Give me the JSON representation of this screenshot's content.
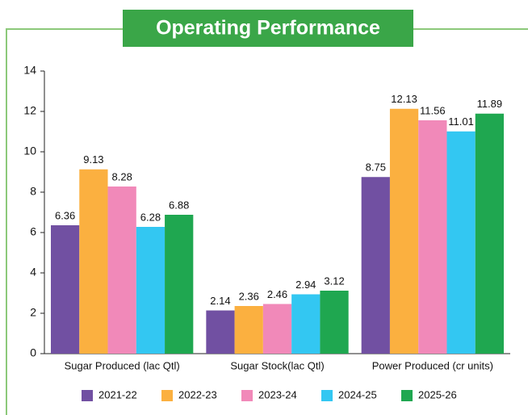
{
  "chart_data": {
    "type": "bar",
    "title": "Operating Performance",
    "categories": [
      "Sugar Produced (lac Qtl)",
      "Sugar Stock(lac Qtl)",
      "Power Produced (cr units)"
    ],
    "series": [
      {
        "name": "2021-22",
        "color": "#7150a2",
        "values": [
          6.36,
          2.14,
          8.75
        ]
      },
      {
        "name": "2022-23",
        "color": "#fbb040",
        "values": [
          9.13,
          2.36,
          12.13
        ]
      },
      {
        "name": "2023-24",
        "color": "#f189b9",
        "values": [
          8.28,
          2.46,
          11.56
        ]
      },
      {
        "name": "2024-25",
        "color": "#33c7f2",
        "values": [
          6.28,
          2.94,
          11.01
        ]
      },
      {
        "name": "2025-26",
        "color": "#1fa750",
        "values": [
          6.88,
          3.12,
          11.89
        ]
      }
    ],
    "ylim": [
      0,
      14
    ],
    "yticks": [
      0,
      2,
      4,
      6,
      8,
      10,
      12,
      14
    ],
    "grid": false,
    "legend": "bottom"
  }
}
